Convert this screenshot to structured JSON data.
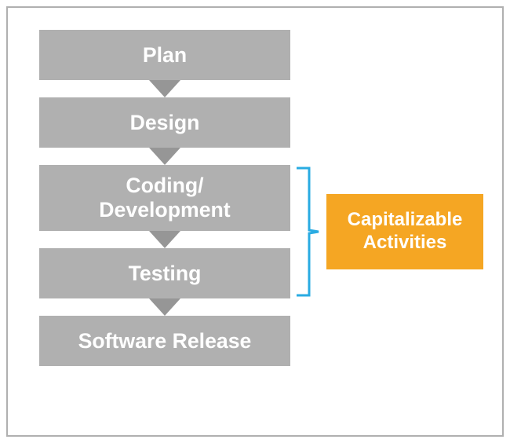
{
  "layout": {
    "frame_border_color": "#b0b0b0",
    "step_box_bg": "#b0b0b0",
    "step_text_color": "#ffffff",
    "step_font_size_pt": 20,
    "step_box_width": 320,
    "step_box_height_single": 64,
    "step_box_height_double": 84,
    "arrow_color": "#969696",
    "arrow_gap": 22,
    "callout_bg": "#f5a623",
    "callout_text_color": "#ffffff",
    "callout_font_size_pt": 18,
    "callout_width": 200,
    "callout_height": 96,
    "bracket_color": "#29abe2",
    "bracket_stroke": 3
  },
  "steps": {
    "s0": {
      "label": "Plan"
    },
    "s1": {
      "label": "Design"
    },
    "s2": {
      "label": "Coding/\nDevelopment"
    },
    "s3": {
      "label": "Testing"
    },
    "s4": {
      "label": "Software Release"
    }
  },
  "callout": {
    "label": "Capitalizable\nActivities"
  }
}
